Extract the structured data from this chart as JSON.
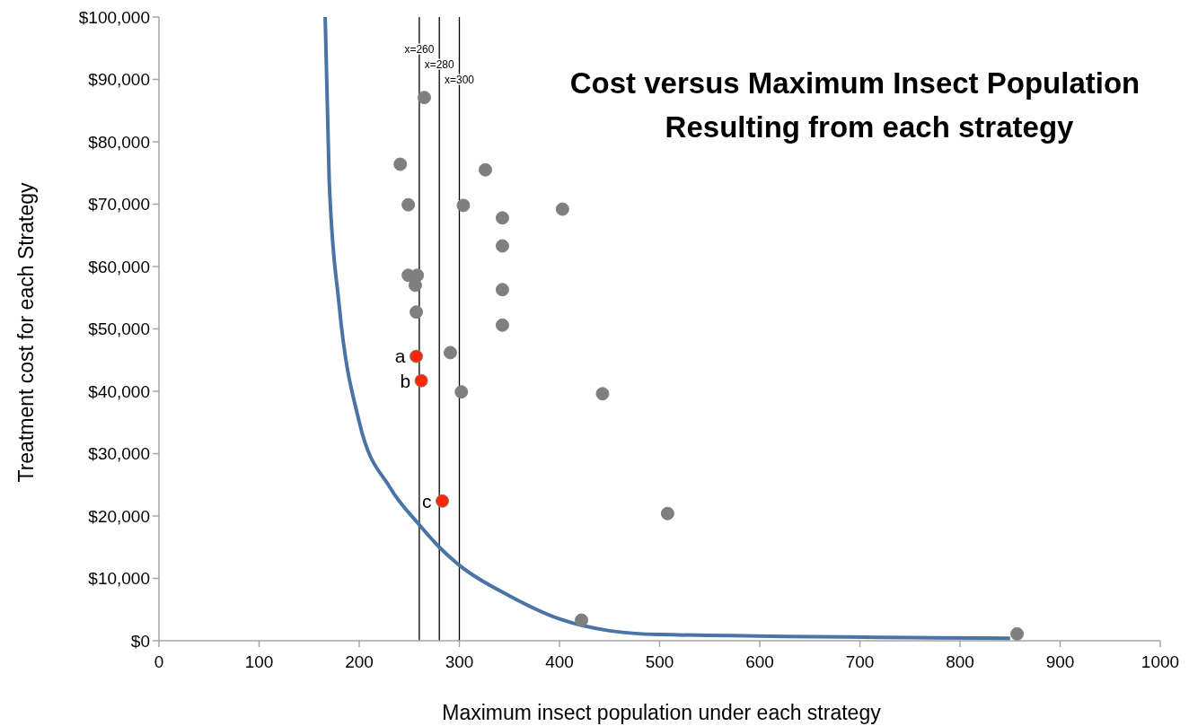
{
  "chart_data": {
    "type": "scatter",
    "title": "Cost versus Maximum Insect Population",
    "subtitle": "Resulting from each strategy",
    "xlabel": "Maximum insect population under each strategy",
    "ylabel": "Treatment cost for each Strategy",
    "xlim": [
      0,
      1000
    ],
    "xticks": [
      0,
      100,
      200,
      300,
      400,
      500,
      600,
      700,
      800,
      900,
      1000
    ],
    "ylim": [
      0,
      100000
    ],
    "yticks": [
      {
        "value": 0,
        "label": "$0"
      },
      {
        "value": 10000,
        "label": "$10,000"
      },
      {
        "value": 20000,
        "label": "$20,000"
      },
      {
        "value": 30000,
        "label": "$30,000"
      },
      {
        "value": 40000,
        "label": "$40,000"
      },
      {
        "value": 50000,
        "label": "$50,000"
      },
      {
        "value": 60000,
        "label": "$60,000"
      },
      {
        "value": 70000,
        "label": "$70,000"
      },
      {
        "value": 80000,
        "label": "$80,000"
      },
      {
        "value": 90000,
        "label": "$90,000"
      },
      {
        "value": 100000,
        "label": "$100,000"
      }
    ],
    "grid": false,
    "series": [
      {
        "type": "line",
        "color": "#4a74a5",
        "line_style": "solid",
        "x": [
          166,
          170,
          180,
          200,
          231,
          260,
          280,
          300,
          350,
          400,
          450,
          500,
          850
        ],
        "values": [
          100000,
          74000,
          53800,
          35100,
          24500,
          18600,
          15000,
          12100,
          7200,
          3500,
          1600,
          1000,
          400
        ]
      },
      {
        "marker": "circle",
        "color": "#7f7f7f",
        "x": [
          265,
          241,
          326,
          249,
          304,
          343,
          403,
          343,
          249,
          258,
          256,
          343,
          257,
          343,
          291,
          302,
          443,
          508,
          422,
          857
        ],
        "values": [
          87100,
          76400,
          75500,
          69900,
          69800,
          67800,
          69200,
          63300,
          58600,
          58600,
          57000,
          56300,
          52700,
          50600,
          46200,
          39900,
          39600,
          20400,
          3300,
          1100
        ]
      },
      {
        "marker": "circle",
        "color": "#ff2600",
        "x": [
          257,
          262,
          283
        ],
        "values": [
          45600,
          41700,
          22400
        ]
      }
    ],
    "ref_lines": [
      {
        "axis": "x",
        "value": 260,
        "label": "x=260",
        "color": "#000000"
      },
      {
        "axis": "x",
        "value": 280,
        "label": "x=280",
        "color": "#000000"
      },
      {
        "axis": "x",
        "value": 300,
        "label": "x=300",
        "color": "#000000"
      }
    ],
    "annotations": [
      {
        "text": "a",
        "x": 257,
        "y": 45600
      },
      {
        "text": "b",
        "x": 262,
        "y": 41700
      },
      {
        "text": "c",
        "x": 283,
        "y": 22400
      }
    ]
  }
}
